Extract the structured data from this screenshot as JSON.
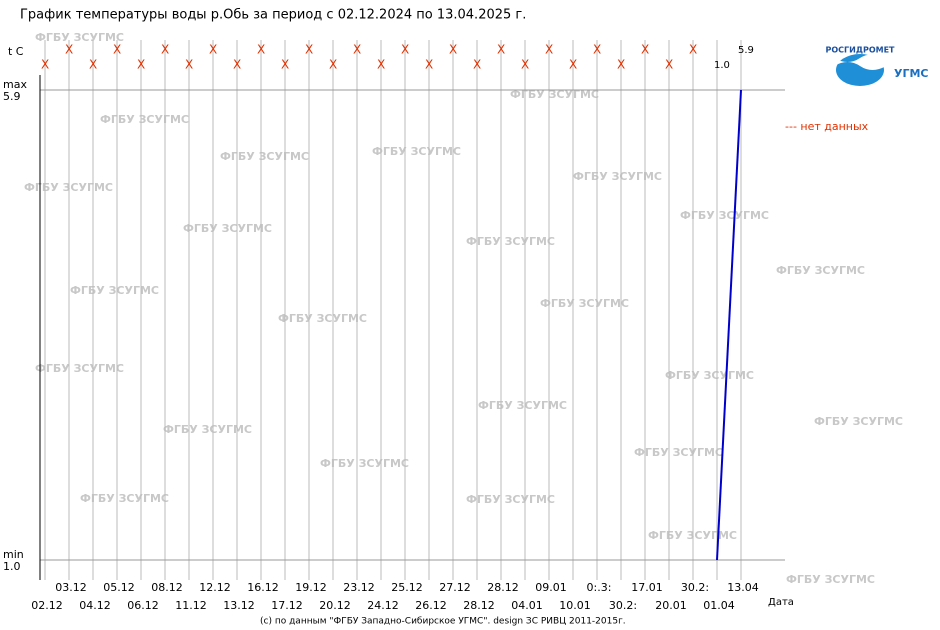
{
  "chart_data": {
    "type": "line",
    "title": "График температуры воды р.Обь за период с 02.12.2024 по 13.04.2025 г.",
    "y_axis_label": "t C",
    "x_axis_label": "Дата",
    "ylim": [
      1.0,
      5.9
    ],
    "yticks": [
      {
        "value": 1.0,
        "label": "1.0"
      },
      {
        "value": 5.9,
        "label": "5.9"
      }
    ],
    "ytick_names": [
      "min",
      "max"
    ],
    "categories": [
      "02.12",
      "03.12",
      "04.12",
      "05.12",
      "06.12",
      "08.12",
      "11.12",
      "12.12",
      "13.12",
      "16.12",
      "17.12",
      "19.12",
      "20.12",
      "23.12",
      "24.12",
      "25.12",
      "26.12",
      "27.12",
      "28.12",
      "28.12",
      "04.01",
      "09.01",
      "10.01",
      "0:.3:",
      "30.2:",
      "17.01",
      "20.01",
      "30.2:",
      "01.04",
      "13.04"
    ],
    "series": [
      {
        "name": "t",
        "color": "#0000cc",
        "values": [
          null,
          null,
          null,
          null,
          null,
          null,
          null,
          null,
          null,
          null,
          null,
          null,
          null,
          null,
          null,
          null,
          null,
          null,
          null,
          null,
          null,
          null,
          null,
          null,
          null,
          null,
          null,
          null,
          1.0,
          5.9
        ],
        "value_labels": [
          "X",
          "X",
          "X",
          "X",
          "X",
          "X",
          "X",
          "X",
          "X",
          "X",
          "X",
          "X",
          "X",
          "X",
          "X",
          "X",
          "X",
          "X",
          "X",
          "X",
          "X",
          "X",
          "X",
          "X",
          "X",
          "X",
          "X",
          "X",
          "1.0",
          "5.9"
        ]
      }
    ],
    "legend_note": "--- нет данных",
    "credit": "(c) по данным \"ФГБУ Западно-Сибирское УГМС\". design ЗС РИВЦ 2011-2015г.",
    "logo_text": "РОСГИДРОМЕТ",
    "logo_sub": "УГМС",
    "watermarks": [
      "ФГБУ ЗСУГМС",
      "ФГБУ ЗСУГМС",
      "ФГБУ ЗСУГМС",
      "ФГБУ ЗСУГМС",
      "ФГБУ ЗСУГМС",
      "ФГБУ ЗСУГМС",
      "ФГБУ ЗСУГМС",
      "ФГБУ ЗСУГМС",
      "ФГБУ ЗСУГМС",
      "ФГБУ ЗСУГМС",
      "ФГБУ ЗСУГМС",
      "ФГБУ ЗСУГМС",
      "ФГБУ ЗСУГМС",
      "ФГБУ ЗСУГМС",
      "ФГБУ ЗСУГМС",
      "ФГБУ ЗСУГМС",
      "ФГБУ ЗСУГМС",
      "ФГБУ ЗСУГМС",
      "ФГБУ ЗСУГМС",
      "ФГБУ ЗСУГМС",
      "ФГБУ ЗСУГМС",
      "ФГБУ ЗСУГМС",
      "ФГБУ ЗСУГМС",
      "ФГБУ ЗСУГМС",
      "ФГБУ ЗСУГМС"
    ]
  }
}
